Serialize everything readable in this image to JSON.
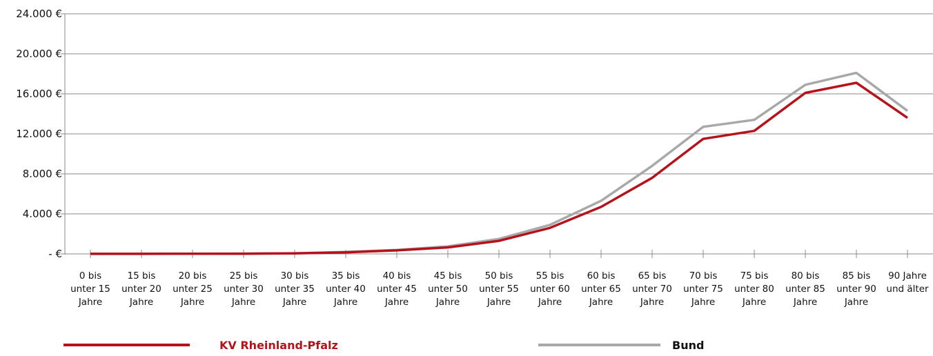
{
  "colors": {
    "rlp": "#b5121b",
    "bund": "#a8a8a8"
  },
  "chart_data": {
    "type": "line",
    "title": "",
    "xlabel": "",
    "ylabel": "",
    "ylim": [
      0,
      24000
    ],
    "grid": true,
    "legend_position": "bottom",
    "yticks": [
      0,
      4000,
      8000,
      12000,
      16000,
      20000,
      24000
    ],
    "ytick_labels": [
      "- €",
      "4.000 €",
      "8.000 €",
      "12.000 €",
      "16.000 €",
      "20.000 €",
      "24.000 €"
    ],
    "categories": [
      [
        "0 bis",
        "unter 15",
        "Jahre"
      ],
      [
        "15 bis",
        "unter 20",
        "Jahre"
      ],
      [
        "20 bis",
        "unter 25",
        "Jahre"
      ],
      [
        "25 bis",
        "unter 30",
        "Jahre"
      ],
      [
        "30 bis",
        "unter 35",
        "Jahre"
      ],
      [
        "35 bis",
        "unter 40",
        "Jahre"
      ],
      [
        "40 bis",
        "unter 45",
        "Jahre"
      ],
      [
        "45 bis",
        "unter 50",
        "Jahre"
      ],
      [
        "50 bis",
        "unter 55",
        "Jahre"
      ],
      [
        "55 bis",
        "unter 60",
        "Jahre"
      ],
      [
        "60 bis",
        "unter 65",
        "Jahre"
      ],
      [
        "65 bis",
        "unter 70",
        "Jahre"
      ],
      [
        "70 bis",
        "unter 75",
        "Jahre"
      ],
      [
        "75 bis",
        "unter 80",
        "Jahre"
      ],
      [
        "80 bis",
        "unter 85",
        "Jahre"
      ],
      [
        "85 bis",
        "unter 90",
        "Jahre"
      ],
      [
        "90 Jahre",
        "und älter"
      ]
    ],
    "series": [
      {
        "name": "KV Rheinland-Pfalz",
        "color": "#b5121b",
        "values": [
          10,
          10,
          20,
          20,
          50,
          150,
          350,
          650,
          1300,
          2600,
          4700,
          7600,
          11500,
          12300,
          16100,
          17100,
          13600
        ]
      },
      {
        "name": "Bund",
        "color": "#a8a8a8",
        "values": [
          10,
          10,
          20,
          30,
          60,
          200,
          400,
          750,
          1500,
          2900,
          5300,
          8800,
          12700,
          13400,
          16900,
          18100,
          14300
        ]
      }
    ]
  }
}
